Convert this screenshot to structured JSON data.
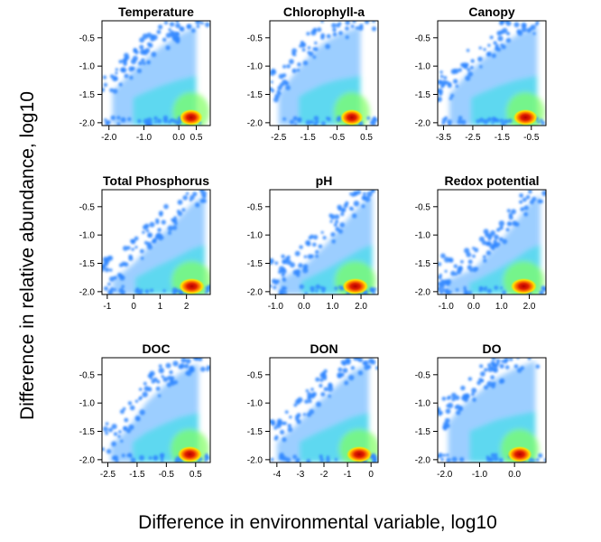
{
  "figure": {
    "ylabel": "Difference in relative abundance, log10",
    "xlabel": "Difference in environmental variable, log10"
  },
  "chart_data": [
    {
      "type": "scatter",
      "title": "Temperature",
      "xlim": [
        -2.2,
        0.9
      ],
      "ylim": [
        -2.05,
        -0.2
      ],
      "x_ticks": [
        -2.0,
        -1.0,
        0.0,
        0.5
      ],
      "x_tick_labels": [
        "-2.0",
        "-1.0",
        "0.0",
        "0.5"
      ],
      "y_ticks": [
        -0.5,
        -1.0,
        -1.5,
        -2.0
      ],
      "y_tick_labels": [
        "-0.5",
        "-1.0",
        "-1.5",
        "-2.0"
      ],
      "density_peak": [
        0.35,
        -1.97
      ],
      "upper_edge": [
        [
          -1.9,
          -1.45
        ],
        [
          -1.5,
          -1.2
        ],
        [
          -1.0,
          -0.9
        ],
        [
          -0.5,
          -0.65
        ],
        [
          0.0,
          -0.45
        ],
        [
          0.5,
          -0.3
        ]
      ],
      "gridlines": false
    },
    {
      "type": "scatter",
      "title": "Chlorophyll-a",
      "xlim": [
        -2.8,
        0.9
      ],
      "ylim": [
        -2.05,
        -0.2
      ],
      "x_ticks": [
        -2.5,
        -1.5,
        -0.5,
        0.5
      ],
      "x_tick_labels": [
        "-2.5",
        "-1.5",
        "-0.5",
        "0.5"
      ],
      "y_ticks": [
        -0.5,
        -1.0,
        -1.5,
        -2.0
      ],
      "y_tick_labels": [
        "-0.5",
        "-1.0",
        "-1.5",
        "-2.0"
      ],
      "density_peak": [
        0.0,
        -1.97
      ],
      "upper_edge": [
        [
          -2.5,
          -1.5
        ],
        [
          -2.0,
          -1.15
        ],
        [
          -1.5,
          -0.85
        ],
        [
          -1.0,
          -0.6
        ],
        [
          -0.5,
          -0.45
        ],
        [
          0.3,
          -0.3
        ]
      ],
      "gridlines": false
    },
    {
      "type": "scatter",
      "title": "Canopy",
      "xlim": [
        -3.7,
        0.0
      ],
      "ylim": [
        -2.05,
        -0.2
      ],
      "x_ticks": [
        -3.5,
        -2.5,
        -1.5,
        -0.5
      ],
      "x_tick_labels": [
        "-3.5",
        "-2.5",
        "-1.5",
        "-0.5"
      ],
      "y_ticks": [
        -0.5,
        -1.0,
        -1.5,
        -2.0
      ],
      "y_tick_labels": [
        "-0.5",
        "-1.0",
        "-1.5",
        "-2.0"
      ],
      "density_peak": [
        -0.7,
        -1.97
      ],
      "upper_edge": [
        [
          -3.3,
          -1.5
        ],
        [
          -2.8,
          -1.2
        ],
        [
          -2.2,
          -0.9
        ],
        [
          -1.6,
          -0.65
        ],
        [
          -1.0,
          -0.45
        ],
        [
          -0.3,
          -0.3
        ]
      ],
      "gridlines": false
    },
    {
      "type": "scatter",
      "title": "Total Phosphorus",
      "xlim": [
        -1.2,
        2.9
      ],
      "ylim": [
        -2.05,
        -0.2
      ],
      "x_ticks": [
        -1,
        0,
        1,
        2
      ],
      "x_tick_labels": [
        "-1",
        "0",
        "1",
        "2"
      ],
      "y_ticks": [
        -0.5,
        -1.0,
        -1.5,
        -2.0
      ],
      "y_tick_labels": [
        "-0.5",
        "-1.0",
        "-1.5",
        "-2.0"
      ],
      "density_peak": [
        2.2,
        -1.97
      ],
      "upper_edge": [
        [
          -0.8,
          -1.8
        ],
        [
          0.0,
          -1.5
        ],
        [
          0.8,
          -1.1
        ],
        [
          1.5,
          -0.8
        ],
        [
          2.2,
          -0.45
        ],
        [
          2.7,
          -0.3
        ]
      ],
      "gridlines": false
    },
    {
      "type": "scatter",
      "title": "pH",
      "xlim": [
        -1.2,
        2.6
      ],
      "ylim": [
        -2.05,
        -0.2
      ],
      "x_ticks": [
        -1.0,
        0.0,
        1.0,
        2.0
      ],
      "x_tick_labels": [
        "-1.0",
        "0.0",
        "1.0",
        "2.0"
      ],
      "y_ticks": [
        -0.5,
        -1.0,
        -1.5,
        -2.0
      ],
      "y_tick_labels": [
        "-0.5",
        "-1.0",
        "-1.5",
        "-2.0"
      ],
      "density_peak": [
        1.8,
        -1.97
      ],
      "upper_edge": [
        [
          -0.9,
          -1.8
        ],
        [
          0.0,
          -1.55
        ],
        [
          0.8,
          -1.15
        ],
        [
          1.4,
          -0.8
        ],
        [
          2.0,
          -0.45
        ],
        [
          2.4,
          -0.3
        ]
      ],
      "gridlines": false
    },
    {
      "type": "scatter",
      "title": "Redox potential",
      "xlim": [
        -1.3,
        2.6
      ],
      "ylim": [
        -2.05,
        -0.2
      ],
      "x_ticks": [
        -1.0,
        0.0,
        1.0,
        2.0
      ],
      "x_tick_labels": [
        "-1.0",
        "0.0",
        "1.0",
        "2.0"
      ],
      "y_ticks": [
        -0.5,
        -1.0,
        -1.5,
        -2.0
      ],
      "y_tick_labels": [
        "-0.5",
        "-1.0",
        "-1.5",
        "-2.0"
      ],
      "density_peak": [
        1.8,
        -1.97
      ],
      "upper_edge": [
        [
          -1.0,
          -1.8
        ],
        [
          0.0,
          -1.6
        ],
        [
          0.8,
          -1.2
        ],
        [
          1.4,
          -0.85
        ],
        [
          2.0,
          -0.45
        ],
        [
          2.4,
          -0.3
        ]
      ],
      "gridlines": false
    },
    {
      "type": "scatter",
      "title": "DOC",
      "xlim": [
        -2.7,
        1.0
      ],
      "ylim": [
        -2.05,
        -0.2
      ],
      "x_ticks": [
        -2.5,
        -1.5,
        -0.5,
        0.5
      ],
      "x_tick_labels": [
        "-2.5",
        "-1.5",
        "-0.5",
        "0.5"
      ],
      "y_ticks": [
        -0.5,
        -1.0,
        -1.5,
        -2.0
      ],
      "y_tick_labels": [
        "-0.5",
        "-1.0",
        "-1.5",
        "-2.0"
      ],
      "density_peak": [
        0.3,
        -1.97
      ],
      "upper_edge": [
        [
          -2.4,
          -1.75
        ],
        [
          -1.8,
          -1.45
        ],
        [
          -1.2,
          -1.0
        ],
        [
          -0.6,
          -0.7
        ],
        [
          0.0,
          -0.45
        ],
        [
          0.6,
          -0.3
        ]
      ],
      "gridlines": false
    },
    {
      "type": "scatter",
      "title": "DON",
      "xlim": [
        -4.3,
        0.3
      ],
      "ylim": [
        -2.05,
        -0.2
      ],
      "x_ticks": [
        -4,
        -3,
        -2,
        -1,
        0
      ],
      "x_tick_labels": [
        "-4",
        "-3",
        "-2",
        "-1",
        "0"
      ],
      "y_ticks": [
        -0.5,
        -1.0,
        -1.5,
        -2.0
      ],
      "y_tick_labels": [
        "-0.5",
        "-1.0",
        "-1.5",
        "-2.0"
      ],
      "density_peak": [
        -0.5,
        -1.97
      ],
      "upper_edge": [
        [
          -4.0,
          -1.7
        ],
        [
          -3.2,
          -1.4
        ],
        [
          -2.4,
          -1.05
        ],
        [
          -1.6,
          -0.75
        ],
        [
          -0.8,
          -0.45
        ],
        [
          -0.1,
          -0.3
        ]
      ],
      "gridlines": false
    },
    {
      "type": "scatter",
      "title": "DO",
      "xlim": [
        -2.2,
        0.9
      ],
      "ylim": [
        -2.05,
        -0.2
      ],
      "x_ticks": [
        -2.0,
        -1.0,
        0.0
      ],
      "x_tick_labels": [
        "-2.0",
        "-1.0",
        "0.0"
      ],
      "y_ticks": [
        -0.5,
        -1.0,
        -1.5,
        -2.0
      ],
      "y_tick_labels": [
        "-0.5",
        "-1.0",
        "-1.5",
        "-2.0"
      ],
      "density_peak": [
        0.15,
        -1.97
      ],
      "upper_edge": [
        [
          -1.9,
          -1.35
        ],
        [
          -1.5,
          -1.05
        ],
        [
          -1.0,
          -0.8
        ],
        [
          -0.5,
          -0.55
        ],
        [
          0.0,
          -0.4
        ],
        [
          0.6,
          -0.25
        ]
      ],
      "gridlines": false
    }
  ]
}
